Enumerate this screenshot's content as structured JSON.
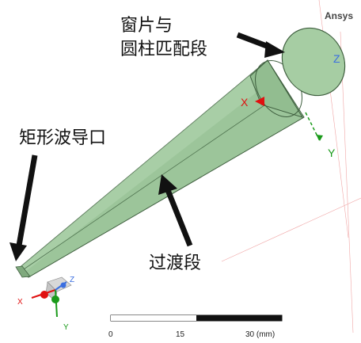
{
  "brand": "Ansys",
  "annotations": {
    "window_line1": "窗片与",
    "window_line2": "圆柱匹配段",
    "rect_waveguide": "矩形波导口",
    "transition": "过渡段"
  },
  "axes": {
    "x": "X",
    "y": "Y",
    "z": "Z"
  },
  "triad": {
    "x": "X",
    "y": "Y",
    "z": "Z"
  },
  "scale_bar": {
    "start": "0",
    "mid": "15",
    "end": "30 (mm)"
  },
  "colors": {
    "model": "#9cc59a",
    "model_edge": "#3e5e3e",
    "axis_x": "#e01010",
    "axis_y": "#1a9a1a",
    "axis_z": "#3a6ee0",
    "grid": "#e09a9a"
  }
}
